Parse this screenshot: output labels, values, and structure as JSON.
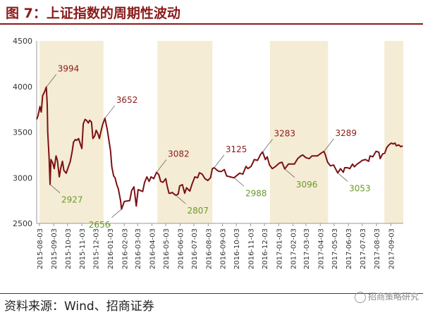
{
  "figure": {
    "title": "图 7：上证指数的周期性波动",
    "source": "资料来源：Wind、招商证券",
    "watermark": "招商策略研究",
    "watermark_icon": "wechat-icon",
    "title_color": "#8b1a1a",
    "line_color": "#7b1113",
    "band_color": "#f5ecd5",
    "peak_label_color": "#8b1a1a",
    "trough_label_color": "#6a9a2a"
  },
  "chart_data": {
    "type": "line",
    "title": "",
    "xlabel": "",
    "ylabel": "",
    "ylim": [
      2500,
      4500
    ],
    "yticks": [
      2500,
      3000,
      3500,
      4000,
      4500
    ],
    "grid": false,
    "x_tick_labels": [
      "2015-08-03",
      "2015-09-03",
      "2015-10-03",
      "2015-11-03",
      "2015-12-03",
      "2016-01-03",
      "2016-02-03",
      "2016-03-03",
      "2016-04-03",
      "2016-05-03",
      "2016-06-03",
      "2016-07-03",
      "2016-08-03",
      "2016-09-03",
      "2016-10-03",
      "2016-11-03",
      "2016-12-03",
      "2017-01-03",
      "2017-02-03",
      "2017-03-03",
      "2017-04-03",
      "2017-05-03",
      "2017-06-03",
      "2017-07-03",
      "2017-08-03",
      "2017-09-03"
    ],
    "x_range": [
      "2015-07-28",
      "2017-09-30"
    ],
    "shaded_periods": [
      [
        "2015-08-03",
        "2015-12-20"
      ],
      [
        "2016-04-15",
        "2016-08-12"
      ],
      [
        "2016-12-15",
        "2017-04-20"
      ],
      [
        "2017-08-20",
        "2017-09-30"
      ]
    ],
    "series": [
      {
        "points": [
          [
            "2015-07-28",
            3640
          ],
          [
            "2015-07-31",
            3680
          ],
          [
            "2015-08-04",
            3780
          ],
          [
            "2015-08-07",
            3720
          ],
          [
            "2015-08-10",
            3900
          ],
          [
            "2015-08-14",
            3940
          ],
          [
            "2015-08-18",
            3994
          ],
          [
            "2015-08-20",
            3800
          ],
          [
            "2015-08-21",
            3500
          ],
          [
            "2015-08-24",
            3210
          ],
          [
            "2015-08-26",
            2927
          ],
          [
            "2015-08-28",
            3200
          ],
          [
            "2015-09-01",
            3160
          ],
          [
            "2015-09-04",
            3100
          ],
          [
            "2015-09-08",
            3240
          ],
          [
            "2015-09-11",
            3190
          ],
          [
            "2015-09-15",
            3010
          ],
          [
            "2015-09-18",
            3100
          ],
          [
            "2015-09-22",
            3180
          ],
          [
            "2015-09-25",
            3080
          ],
          [
            "2015-09-30",
            3050
          ],
          [
            "2015-10-09",
            3180
          ],
          [
            "2015-10-13",
            3290
          ],
          [
            "2015-10-16",
            3390
          ],
          [
            "2015-10-20",
            3420
          ],
          [
            "2015-10-23",
            3410
          ],
          [
            "2015-10-27",
            3430
          ],
          [
            "2015-10-30",
            3380
          ],
          [
            "2015-11-03",
            3320
          ],
          [
            "2015-11-06",
            3590
          ],
          [
            "2015-11-10",
            3640
          ],
          [
            "2015-11-13",
            3630
          ],
          [
            "2015-11-17",
            3600
          ],
          [
            "2015-11-20",
            3630
          ],
          [
            "2015-11-24",
            3610
          ],
          [
            "2015-11-27",
            3430
          ],
          [
            "2015-12-01",
            3460
          ],
          [
            "2015-12-04",
            3520
          ],
          [
            "2015-12-08",
            3480
          ],
          [
            "2015-12-11",
            3430
          ],
          [
            "2015-12-15",
            3520
          ],
          [
            "2015-12-18",
            3580
          ],
          [
            "2015-12-23",
            3652
          ],
          [
            "2015-12-28",
            3530
          ],
          [
            "2016-01-04",
            3300
          ],
          [
            "2016-01-07",
            3120
          ],
          [
            "2016-01-11",
            3020
          ],
          [
            "2016-01-14",
            3000
          ],
          [
            "2016-01-18",
            2920
          ],
          [
            "2016-01-21",
            2880
          ],
          [
            "2016-01-26",
            2750
          ],
          [
            "2016-01-28",
            2656
          ],
          [
            "2016-02-03",
            2740
          ],
          [
            "2016-02-15",
            2750
          ],
          [
            "2016-02-19",
            2860
          ],
          [
            "2016-02-24",
            2900
          ],
          [
            "2016-02-29",
            2690
          ],
          [
            "2016-03-04",
            2870
          ],
          [
            "2016-03-09",
            2860
          ],
          [
            "2016-03-14",
            2850
          ],
          [
            "2016-03-18",
            2950
          ],
          [
            "2016-03-23",
            3010
          ],
          [
            "2016-03-28",
            2960
          ],
          [
            "2016-04-01",
            3010
          ],
          [
            "2016-04-07",
            2990
          ],
          [
            "2016-04-13",
            3060
          ],
          [
            "2016-04-18",
            3033
          ],
          [
            "2016-04-22",
            2960
          ],
          [
            "2016-04-27",
            2950
          ],
          [
            "2016-05-03",
            2990
          ],
          [
            "2016-05-06",
            2910
          ],
          [
            "2016-05-10",
            2830
          ],
          [
            "2016-05-13",
            2830
          ],
          [
            "2016-05-17",
            2840
          ],
          [
            "2016-05-20",
            2825
          ],
          [
            "2016-05-25",
            2807
          ],
          [
            "2016-05-30",
            2822
          ],
          [
            "2016-06-02",
            2910
          ],
          [
            "2016-06-08",
            2925
          ],
          [
            "2016-06-13",
            2830
          ],
          [
            "2016-06-17",
            2890
          ],
          [
            "2016-06-24",
            2854
          ],
          [
            "2016-06-29",
            2930
          ],
          [
            "2016-07-05",
            3010
          ],
          [
            "2016-07-11",
            3000
          ],
          [
            "2016-07-15",
            3055
          ],
          [
            "2016-07-21",
            3040
          ],
          [
            "2016-07-27",
            2990
          ],
          [
            "2016-08-02",
            2970
          ],
          [
            "2016-08-08",
            3000
          ],
          [
            "2016-08-12",
            3100
          ],
          [
            "2016-08-16",
            3110
          ],
          [
            "2016-08-22",
            3084
          ],
          [
            "2016-08-26",
            3070
          ],
          [
            "2016-09-01",
            3070
          ],
          [
            "2016-09-07",
            3090
          ],
          [
            "2016-09-12",
            3020
          ],
          [
            "2016-09-20",
            3010
          ],
          [
            "2016-09-28",
            3000
          ],
          [
            "2016-10-10",
            3050
          ],
          [
            "2016-10-17",
            3040
          ],
          [
            "2016-10-24",
            3125
          ],
          [
            "2016-10-28",
            3100
          ],
          [
            "2016-11-04",
            3125
          ],
          [
            "2016-11-11",
            3200
          ],
          [
            "2016-11-18",
            3190
          ],
          [
            "2016-11-25",
            3260
          ],
          [
            "2016-11-29",
            3283
          ],
          [
            "2016-12-05",
            3200
          ],
          [
            "2016-12-09",
            3230
          ],
          [
            "2016-12-14",
            3140
          ],
          [
            "2016-12-20",
            3100
          ],
          [
            "2016-12-26",
            3120
          ],
          [
            "2017-01-04",
            3160
          ],
          [
            "2017-01-10",
            3170
          ],
          [
            "2017-01-16",
            3096
          ],
          [
            "2017-01-24",
            3150
          ],
          [
            "2017-02-06",
            3150
          ],
          [
            "2017-02-13",
            3210
          ],
          [
            "2017-02-20",
            3240
          ],
          [
            "2017-02-24",
            3250
          ],
          [
            "2017-03-03",
            3220
          ],
          [
            "2017-03-10",
            3210
          ],
          [
            "2017-03-16",
            3240
          ],
          [
            "2017-03-22",
            3240
          ],
          [
            "2017-03-28",
            3240
          ],
          [
            "2017-04-05",
            3270
          ],
          [
            "2017-04-11",
            3289
          ],
          [
            "2017-04-14",
            3250
          ],
          [
            "2017-04-19",
            3170
          ],
          [
            "2017-04-25",
            3130
          ],
          [
            "2017-05-02",
            3140
          ],
          [
            "2017-05-08",
            3080
          ],
          [
            "2017-05-11",
            3053
          ],
          [
            "2017-05-17",
            3100
          ],
          [
            "2017-05-23",
            3060
          ],
          [
            "2017-05-26",
            3110
          ],
          [
            "2017-06-01",
            3110
          ],
          [
            "2017-06-06",
            3100
          ],
          [
            "2017-06-12",
            3150
          ],
          [
            "2017-06-16",
            3120
          ],
          [
            "2017-06-22",
            3150
          ],
          [
            "2017-06-28",
            3170
          ],
          [
            "2017-07-03",
            3190
          ],
          [
            "2017-07-10",
            3200
          ],
          [
            "2017-07-17",
            3180
          ],
          [
            "2017-07-20",
            3240
          ],
          [
            "2017-07-26",
            3230
          ],
          [
            "2017-08-02",
            3290
          ],
          [
            "2017-08-08",
            3280
          ],
          [
            "2017-08-11",
            3210
          ],
          [
            "2017-08-16",
            3260
          ],
          [
            "2017-08-21",
            3270
          ],
          [
            "2017-08-25",
            3330
          ],
          [
            "2017-08-30",
            3360
          ],
          [
            "2017-09-04",
            3380
          ],
          [
            "2017-09-08",
            3370
          ],
          [
            "2017-09-12",
            3380
          ],
          [
            "2017-09-15",
            3350
          ],
          [
            "2017-09-20",
            3360
          ],
          [
            "2017-09-25",
            3340
          ],
          [
            "2017-09-29",
            3350
          ]
        ]
      }
    ],
    "annotations": [
      {
        "text": "3994",
        "x": "2015-08-18",
        "y": 3994,
        "kind": "peak",
        "side": "right"
      },
      {
        "text": "2927",
        "x": "2015-08-26",
        "y": 2927,
        "kind": "trough",
        "side": "right"
      },
      {
        "text": "3652",
        "x": "2015-12-23",
        "y": 3652,
        "kind": "peak",
        "side": "right"
      },
      {
        "text": "2656",
        "x": "2016-01-28",
        "y": 2656,
        "kind": "trough",
        "side": "left"
      },
      {
        "text": "3082",
        "x": "2016-04-13",
        "y": 3060,
        "kind": "peak",
        "side": "right"
      },
      {
        "text": "2807",
        "x": "2016-05-25",
        "y": 2807,
        "kind": "trough",
        "side": "right"
      },
      {
        "text": "3125",
        "x": "2016-08-16",
        "y": 3110,
        "kind": "peak",
        "side": "right"
      },
      {
        "text": "2988",
        "x": "2016-09-28",
        "y": 3000,
        "kind": "trough",
        "side": "right"
      },
      {
        "text": "3283",
        "x": "2016-11-29",
        "y": 3283,
        "kind": "peak",
        "side": "right"
      },
      {
        "text": "3096",
        "x": "2017-01-16",
        "y": 3096,
        "kind": "trough",
        "side": "right"
      },
      {
        "text": "3289",
        "x": "2017-04-11",
        "y": 3289,
        "kind": "peak",
        "side": "right"
      },
      {
        "text": "3053",
        "x": "2017-05-11",
        "y": 3053,
        "kind": "trough",
        "side": "right"
      }
    ]
  }
}
